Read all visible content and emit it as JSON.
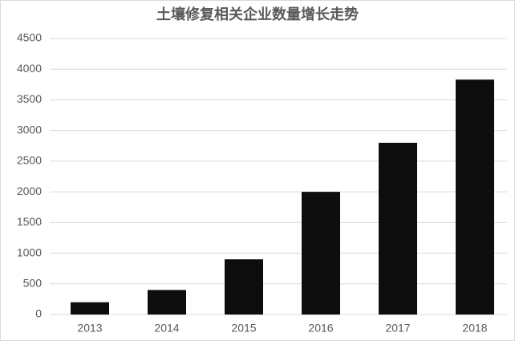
{
  "chart_data": {
    "type": "bar",
    "title": "土壤修复相关企业数量增长走势",
    "categories": [
      "2013",
      "2014",
      "2015",
      "2016",
      "2017",
      "2018"
    ],
    "values": [
      200,
      400,
      900,
      2000,
      2800,
      3830
    ],
    "color": "#0d0d0d",
    "ylim": [
      0,
      4500
    ],
    "yticks": [
      0,
      500,
      1000,
      1500,
      2000,
      2500,
      3000,
      3500,
      4000,
      4500
    ],
    "grid": true
  }
}
